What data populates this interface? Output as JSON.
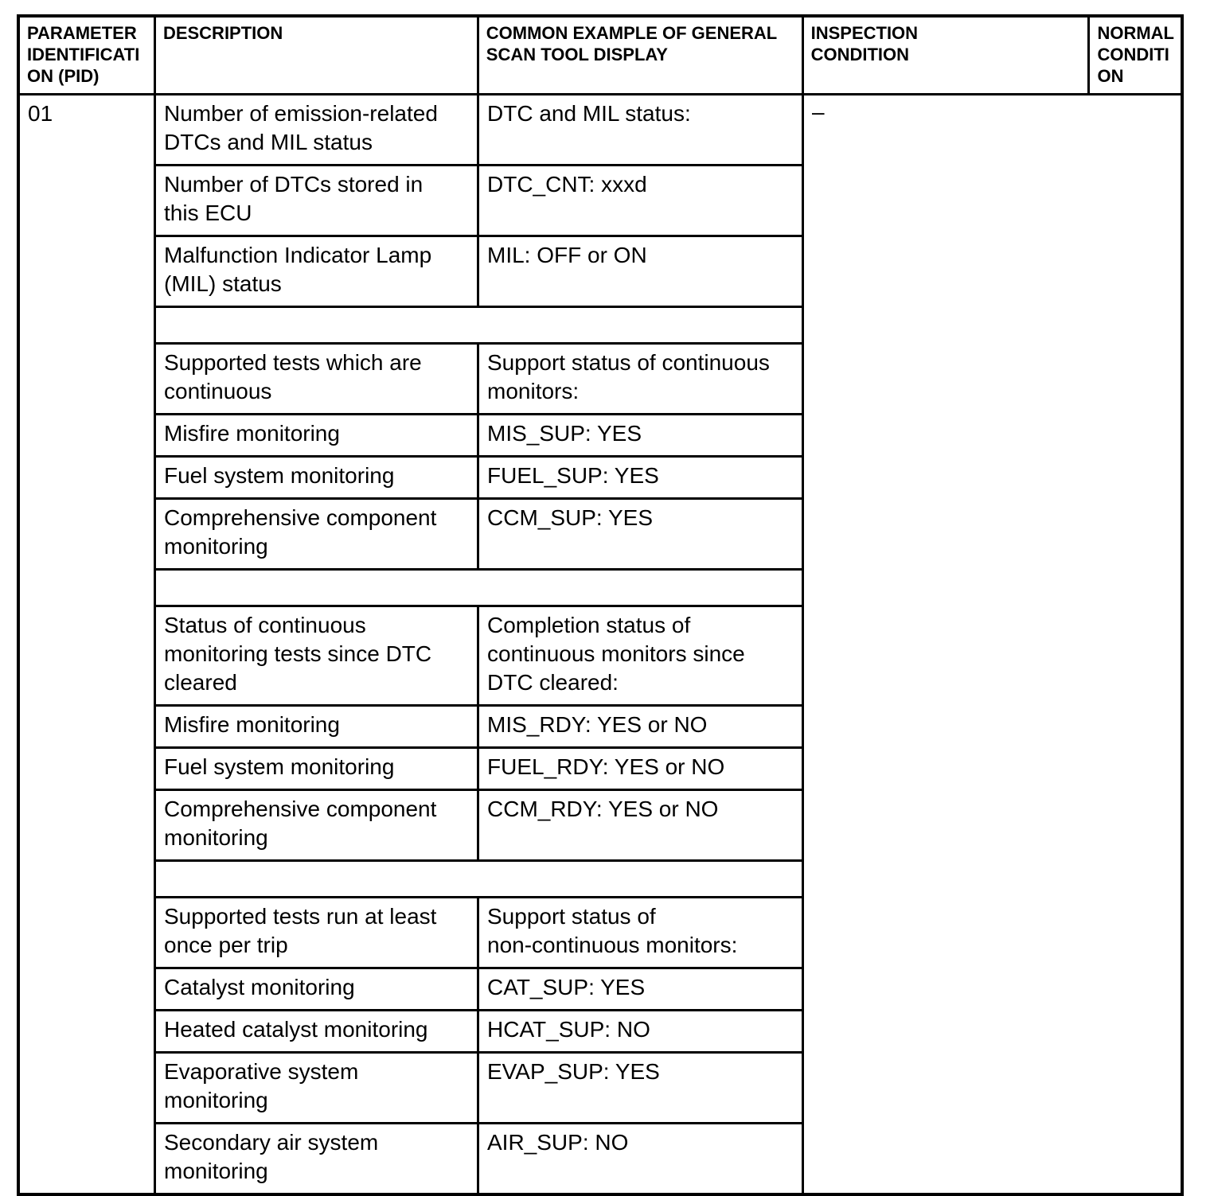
{
  "table": {
    "columns": [
      {
        "label": "PARAMETER\nIDENTIFICATI\nON (PID)"
      },
      {
        "label": "DESCRIPTION"
      },
      {
        "label": "COMMON EXAMPLE OF GENERAL\nSCAN TOOL DISPLAY"
      },
      {
        "label": "INSPECTION\nCONDITION"
      },
      {
        "label": "NORMAL\nCONDITI\nON"
      }
    ],
    "pid": "01",
    "inspection_condition": "–",
    "normal_condition": "",
    "groups": [
      {
        "rows": [
          {
            "description": "Number of emission-related\nDTCs and MIL status",
            "display": "DTC and MIL status:"
          },
          {
            "description": "Number of DTCs stored in\nthis ECU",
            "display": "DTC_CNT: xxxd"
          },
          {
            "description": "Malfunction Indicator Lamp\n(MIL) status",
            "display": "MIL: OFF or ON"
          }
        ]
      },
      {
        "rows": [
          {
            "description": "Supported tests which are\ncontinuous",
            "display": "Support status of continuous\nmonitors:"
          },
          {
            "description": "Misfire monitoring",
            "display": "MIS_SUP: YES"
          },
          {
            "description": "Fuel system monitoring",
            "display": "FUEL_SUP: YES"
          },
          {
            "description": "Comprehensive component\nmonitoring",
            "display": "CCM_SUP: YES"
          }
        ]
      },
      {
        "rows": [
          {
            "description": "Status of continuous\nmonitoring tests since DTC\ncleared",
            "display": "Completion status of\ncontinuous monitors since\nDTC cleared:"
          },
          {
            "description": "Misfire monitoring",
            "display": "MIS_RDY: YES or NO"
          },
          {
            "description": "Fuel system monitoring",
            "display": "FUEL_RDY: YES or NO"
          },
          {
            "description": "Comprehensive component\nmonitoring",
            "display": "CCM_RDY: YES or NO"
          }
        ]
      },
      {
        "rows": [
          {
            "description": "Supported tests run at least\nonce per trip",
            "display": "Support status of\nnon-continuous monitors:"
          },
          {
            "description": "Catalyst monitoring",
            "display": "CAT_SUP: YES"
          },
          {
            "description": "Heated catalyst monitoring",
            "display": "HCAT_SUP: NO"
          },
          {
            "description": "Evaporative system\nmonitoring",
            "display": "EVAP_SUP: YES"
          },
          {
            "description": "Secondary air system\nmonitoring",
            "display": "AIR_SUP: NO"
          }
        ]
      }
    ]
  }
}
